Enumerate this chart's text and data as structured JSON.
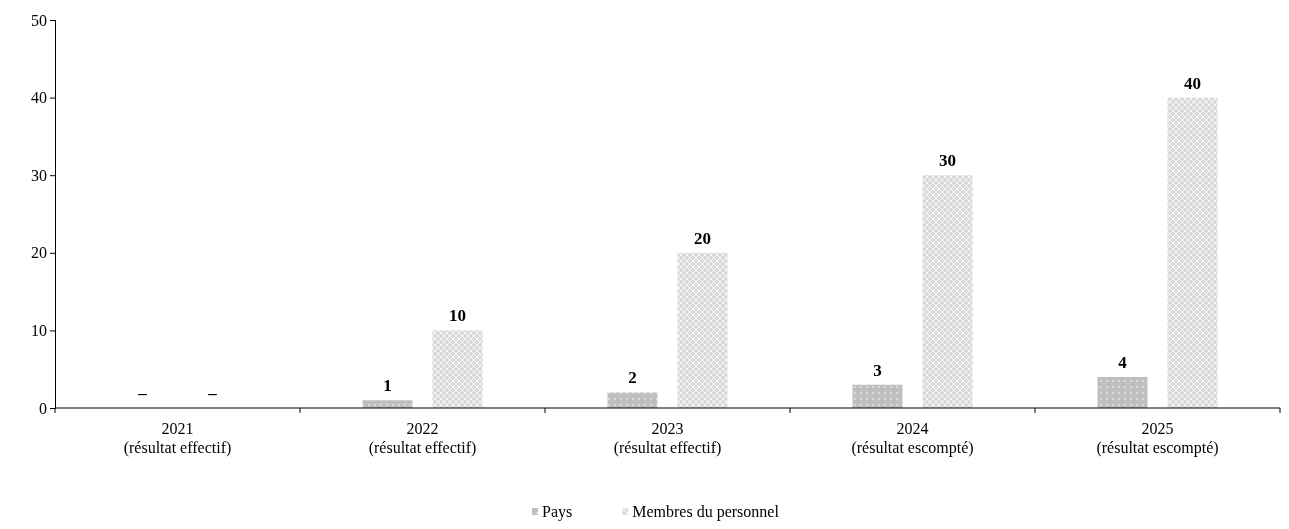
{
  "chart_data": {
    "type": "bar",
    "categories": [
      "2021\n(résultat effectif)",
      "2022\n(résultat effectif)",
      "2023\n(résultat effectif)",
      "2024\n(résultat escompté)",
      "2025\n(résultat escompté)"
    ],
    "series": [
      {
        "name": "Pays",
        "color": "#bfbfbf",
        "values": [
          null,
          1,
          2,
          3,
          4
        ],
        "value_labels": [
          "–",
          "1",
          "2",
          "3",
          "4"
        ]
      },
      {
        "name": "Membres du personnel",
        "color": "#d9d9d9",
        "values": [
          null,
          10,
          20,
          30,
          40
        ],
        "value_labels": [
          "–",
          "10",
          "20",
          "30",
          "40"
        ]
      }
    ],
    "ylim": [
      0,
      50
    ],
    "yticks": [
      0,
      10,
      20,
      30,
      40,
      50
    ],
    "grid": false,
    "legend": "bottom"
  }
}
